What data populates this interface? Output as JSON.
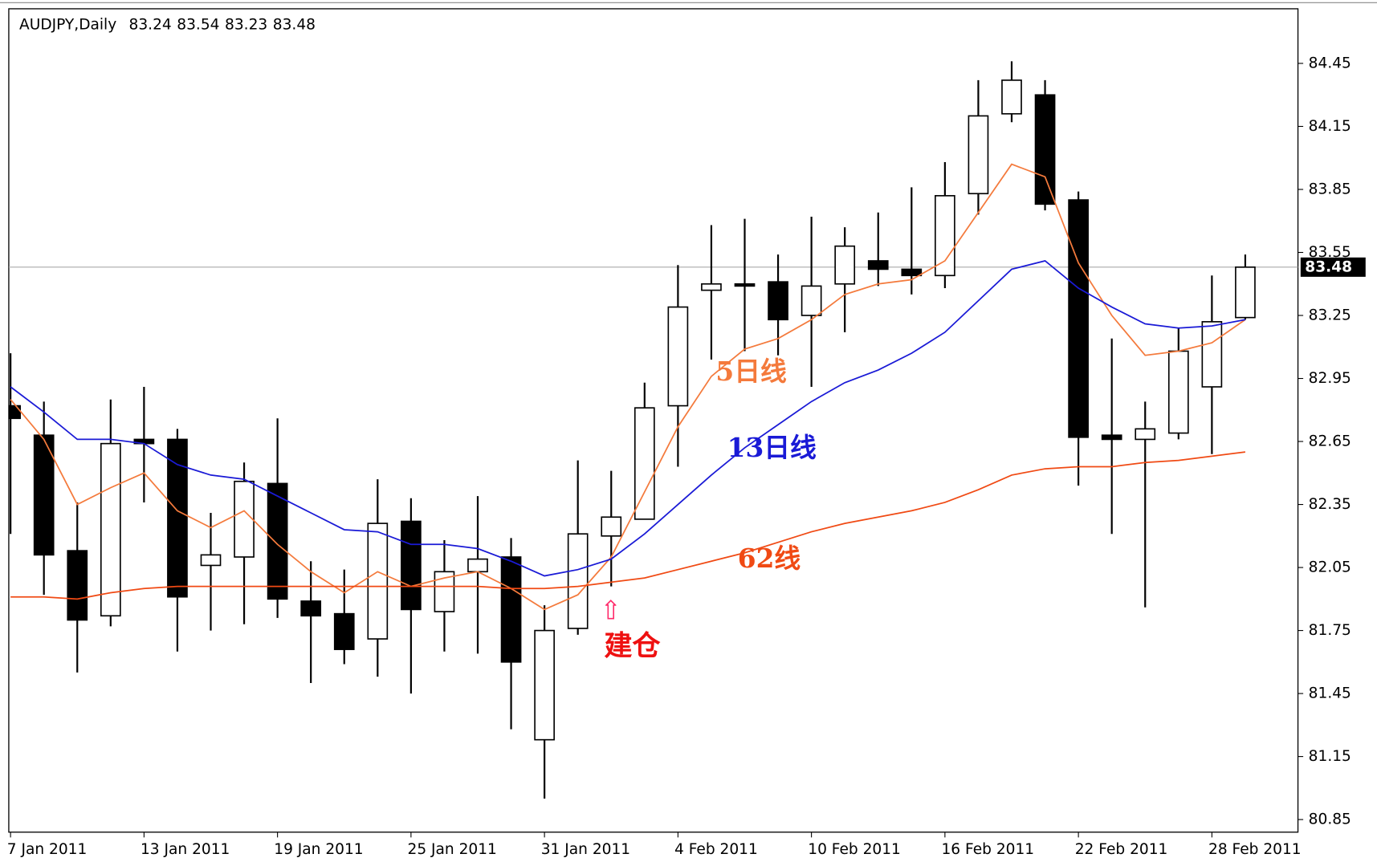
{
  "chart_data": {
    "type": "candlestick",
    "symbol": "AUDJPY,Daily",
    "categories": [
      "7 Jan 2011",
      null,
      null,
      null,
      "13 Jan 2011",
      null,
      null,
      null,
      "19 Jan 2011",
      null,
      null,
      null,
      "25 Jan 2011",
      null,
      null,
      null,
      "31 Jan 2011",
      null,
      null,
      null,
      "4 Feb 2011",
      null,
      null,
      null,
      "10 Feb 2011",
      null,
      null,
      null,
      "16 Feb 2011",
      null,
      null,
      null,
      "22 Feb 2011",
      null,
      null,
      null,
      "28 Feb 2011",
      null
    ],
    "open": [
      82.82,
      82.68,
      82.13,
      81.82,
      82.66,
      82.66,
      82.06,
      82.1,
      82.45,
      81.89,
      81.83,
      81.71,
      82.27,
      81.84,
      82.03,
      82.1,
      81.23,
      81.76,
      82.2,
      82.28,
      82.82,
      83.37,
      83.4,
      83.41,
      83.25,
      83.4,
      83.51,
      83.47,
      83.44,
      83.83,
      84.21,
      84.3,
      83.8,
      82.68,
      82.66,
      82.69,
      82.91,
      83.24
    ],
    "high": [
      83.07,
      82.84,
      82.36,
      82.85,
      82.91,
      82.71,
      82.31,
      82.55,
      82.76,
      82.08,
      82.04,
      82.47,
      82.38,
      82.18,
      82.39,
      82.19,
      81.87,
      82.56,
      82.51,
      82.93,
      83.49,
      83.68,
      83.71,
      83.54,
      83.72,
      83.67,
      83.74,
      83.86,
      83.98,
      84.37,
      84.46,
      84.37,
      83.84,
      83.14,
      82.84,
      83.19,
      83.44,
      83.54
    ],
    "low": [
      82.21,
      81.92,
      81.55,
      81.77,
      82.36,
      81.65,
      81.75,
      81.78,
      81.81,
      81.5,
      81.59,
      81.53,
      81.45,
      81.65,
      81.64,
      81.28,
      80.95,
      81.73,
      81.96,
      82.28,
      82.53,
      83.04,
      83.08,
      83.06,
      82.91,
      83.17,
      83.39,
      83.35,
      83.38,
      83.73,
      84.17,
      83.75,
      82.44,
      82.21,
      81.86,
      82.66,
      82.59,
      83.23
    ],
    "close": [
      82.76,
      82.11,
      81.8,
      82.64,
      82.64,
      81.91,
      82.11,
      82.46,
      81.9,
      81.82,
      81.66,
      82.26,
      81.85,
      82.03,
      82.09,
      81.6,
      81.75,
      82.21,
      82.29,
      82.81,
      83.29,
      83.4,
      83.39,
      83.23,
      83.39,
      83.58,
      83.47,
      83.44,
      83.82,
      84.2,
      84.37,
      83.78,
      82.67,
      82.66,
      82.71,
      83.08,
      83.22,
      83.48
    ],
    "series": [
      {
        "name": "5日线",
        "color": "#f47a3c",
        "values": [
          82.85,
          82.66,
          82.35,
          82.43,
          82.5,
          82.32,
          82.24,
          82.32,
          82.16,
          82.03,
          81.93,
          82.03,
          81.96,
          82.0,
          82.03,
          81.95,
          81.85,
          81.92,
          82.1,
          82.41,
          82.72,
          82.96,
          83.09,
          83.14,
          83.23,
          83.35,
          83.4,
          83.42,
          83.51,
          83.74,
          83.97,
          83.91,
          83.5,
          83.25,
          83.06,
          83.08,
          83.12,
          83.23
        ]
      },
      {
        "name": "13日线",
        "color": "#1a1ad6",
        "values": [
          82.91,
          82.79,
          82.66,
          82.66,
          82.64,
          82.54,
          82.49,
          82.47,
          82.39,
          82.31,
          82.23,
          82.22,
          82.16,
          82.16,
          82.14,
          82.08,
          82.01,
          82.04,
          82.09,
          82.21,
          82.35,
          82.49,
          82.62,
          82.73,
          82.84,
          82.93,
          82.99,
          83.07,
          83.17,
          83.32,
          83.47,
          83.51,
          83.38,
          83.29,
          83.21,
          83.19,
          83.2,
          83.23
        ]
      },
      {
        "name": "62线",
        "color": "#f04a14",
        "values": [
          81.91,
          81.91,
          81.9,
          81.93,
          81.95,
          81.96,
          81.96,
          81.96,
          81.96,
          81.96,
          81.96,
          81.96,
          81.96,
          81.96,
          81.96,
          81.95,
          81.95,
          81.96,
          81.98,
          82.0,
          82.04,
          82.08,
          82.12,
          82.17,
          82.22,
          82.26,
          82.29,
          82.32,
          82.36,
          82.42,
          82.49,
          82.52,
          82.53,
          82.53,
          82.55,
          82.56,
          82.58,
          82.6
        ]
      }
    ],
    "annotations": [
      {
        "text": "⇧",
        "color": "#ff2a6a"
      },
      {
        "text": "建仓",
        "color": "#ee1111"
      }
    ],
    "ylim": [
      80.79,
      84.71
    ],
    "yticks": [
      84.45,
      84.15,
      83.85,
      83.55,
      83.25,
      82.95,
      82.65,
      82.35,
      82.05,
      81.75,
      81.45,
      81.15,
      80.85
    ]
  }
}
